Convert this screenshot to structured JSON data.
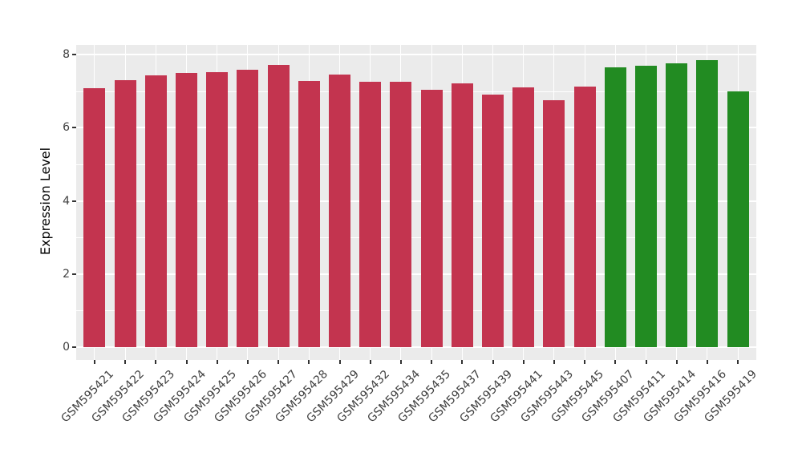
{
  "chart_data": {
    "type": "bar",
    "title": "",
    "xlabel": "",
    "ylabel": "Expression Level",
    "ylim": [
      0,
      8.27
    ],
    "yticks_major": [
      0,
      2,
      4,
      6,
      8
    ],
    "yticks_minor": [
      1,
      3,
      5,
      7
    ],
    "grid": "on",
    "legend_position": "none",
    "categories": [
      "GSM595421",
      "GSM595422",
      "GSM595423",
      "GSM595424",
      "GSM595425",
      "GSM595426",
      "GSM595427",
      "GSM595428",
      "GSM595429",
      "GSM595432",
      "GSM595434",
      "GSM595435",
      "GSM595437",
      "GSM595439",
      "GSM595441",
      "GSM595443",
      "GSM595445",
      "GSM595407",
      "GSM595411",
      "GSM595414",
      "GSM595416",
      "GSM595419"
    ],
    "values": [
      7.08,
      7.3,
      7.43,
      7.5,
      7.53,
      7.59,
      7.71,
      7.27,
      7.46,
      7.26,
      7.25,
      7.05,
      7.21,
      6.91,
      7.1,
      6.75,
      7.12,
      7.65,
      7.7,
      7.76,
      7.85,
      7.0
    ],
    "bar_colors": [
      "#C3344F",
      "#C3344F",
      "#C3344F",
      "#C3344F",
      "#C3344F",
      "#C3344F",
      "#C3344F",
      "#C3344F",
      "#C3344F",
      "#C3344F",
      "#C3344F",
      "#C3344F",
      "#C3344F",
      "#C3344F",
      "#C3344F",
      "#C3344F",
      "#C3344F",
      "#228B22",
      "#228B22",
      "#228B22",
      "#228B22",
      "#228B22"
    ],
    "palette": {
      "group_a": "#C3344F",
      "group_b": "#228B22"
    }
  },
  "style": {
    "figure_bg": "#FFFFFF",
    "panel_bg": "#EBEBEB",
    "grid_color": "#FFFFFF",
    "tick_color": "#333333",
    "tick_label_color": "#404040",
    "axis_title_color": "#000000"
  }
}
